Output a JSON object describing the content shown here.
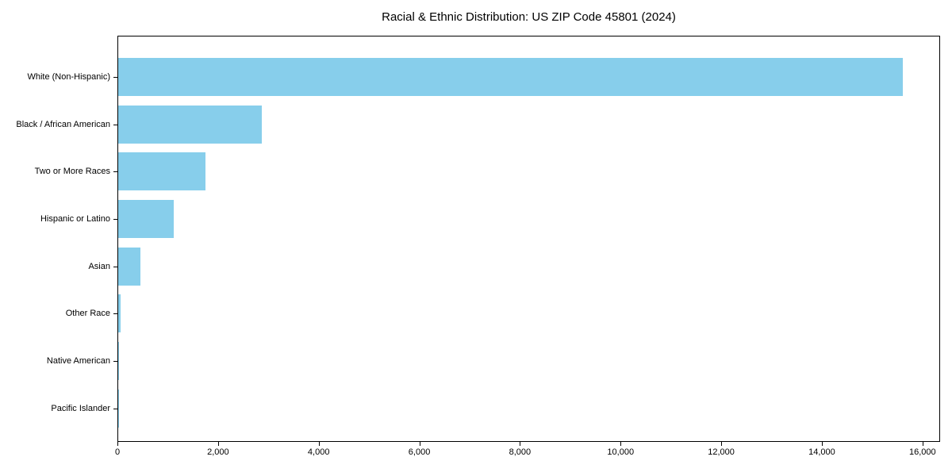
{
  "figure": {
    "title": "Racial & Ethnic Distribution: US ZIP Code 45801 (2024)"
  },
  "chart_data": {
    "type": "bar",
    "orientation": "horizontal",
    "title": "Racial & Ethnic Distribution: US ZIP Code 45801 (2024)",
    "categories": [
      "White (Non-Hispanic)",
      "Black / African American",
      "Two or More Races",
      "Hispanic or Latino",
      "Asian",
      "Other Race",
      "Native American",
      "Pacific Islander"
    ],
    "values": [
      15600,
      2850,
      1740,
      1100,
      440,
      50,
      15,
      5
    ],
    "xlabel": "",
    "ylabel": "",
    "xlim": [
      0,
      16350
    ],
    "xticks": [
      0,
      2000,
      4000,
      6000,
      8000,
      10000,
      12000,
      14000,
      16000
    ],
    "xtick_labels": [
      "0",
      "2,000",
      "4,000",
      "6,000",
      "8,000",
      "10,000",
      "12,000",
      "14,000",
      "16,000"
    ],
    "bar_color": "#87CEEB",
    "axis_color": "#000000",
    "text_color": "#000000",
    "grid": false,
    "legend": null,
    "layout_hint": "largest value at top, full box spines, ticks outside"
  }
}
